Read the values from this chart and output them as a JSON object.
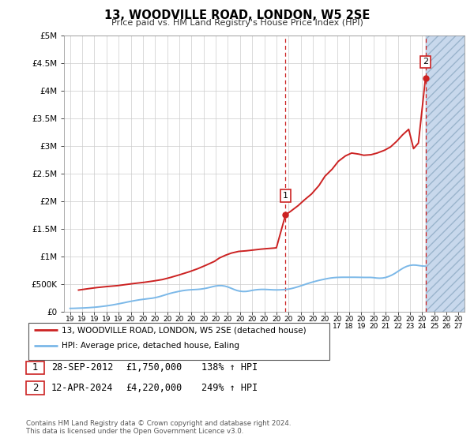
{
  "title": "13, WOODVILLE ROAD, LONDON, W5 2SE",
  "subtitle": "Price paid vs. HM Land Registry's House Price Index (HPI)",
  "ylim": [
    0,
    5000000
  ],
  "yticks": [
    0,
    500000,
    1000000,
    1500000,
    2000000,
    2500000,
    3000000,
    3500000,
    4000000,
    4500000,
    5000000
  ],
  "ytick_labels": [
    "£0",
    "£500K",
    "£1M",
    "£1.5M",
    "£2M",
    "£2.5M",
    "£3M",
    "£3.5M",
    "£4M",
    "£4.5M",
    "£5M"
  ],
  "xlim_start": 1994.5,
  "xlim_end": 2027.5,
  "xtick_years": [
    1995,
    1996,
    1997,
    1998,
    1999,
    2000,
    2001,
    2002,
    2003,
    2004,
    2005,
    2006,
    2007,
    2008,
    2009,
    2010,
    2011,
    2012,
    2013,
    2014,
    2015,
    2016,
    2017,
    2018,
    2019,
    2020,
    2021,
    2022,
    2023,
    2024,
    2025,
    2026,
    2027
  ],
  "hpi_line_color": "#7bb8e8",
  "price_line_color": "#cc2222",
  "dashed_line_color": "#cc2222",
  "hpi_data_x": [
    1995.0,
    1995.25,
    1995.5,
    1995.75,
    1996.0,
    1996.25,
    1996.5,
    1996.75,
    1997.0,
    1997.25,
    1997.5,
    1997.75,
    1998.0,
    1998.25,
    1998.5,
    1998.75,
    1999.0,
    1999.25,
    1999.5,
    1999.75,
    2000.0,
    2000.25,
    2000.5,
    2000.75,
    2001.0,
    2001.25,
    2001.5,
    2001.75,
    2002.0,
    2002.25,
    2002.5,
    2002.75,
    2003.0,
    2003.25,
    2003.5,
    2003.75,
    2004.0,
    2004.25,
    2004.5,
    2004.75,
    2005.0,
    2005.25,
    2005.5,
    2005.75,
    2006.0,
    2006.25,
    2006.5,
    2006.75,
    2007.0,
    2007.25,
    2007.5,
    2007.75,
    2008.0,
    2008.25,
    2008.5,
    2008.75,
    2009.0,
    2009.25,
    2009.5,
    2009.75,
    2010.0,
    2010.25,
    2010.5,
    2010.75,
    2011.0,
    2011.25,
    2011.5,
    2011.75,
    2012.0,
    2012.25,
    2012.5,
    2012.75,
    2013.0,
    2013.25,
    2013.5,
    2013.75,
    2014.0,
    2014.25,
    2014.5,
    2014.75,
    2015.0,
    2015.25,
    2015.5,
    2015.75,
    2016.0,
    2016.25,
    2016.5,
    2016.75,
    2017.0,
    2017.25,
    2017.5,
    2017.75,
    2018.0,
    2018.25,
    2018.5,
    2018.75,
    2019.0,
    2019.25,
    2019.5,
    2019.75,
    2020.0,
    2020.25,
    2020.5,
    2020.75,
    2021.0,
    2021.25,
    2021.5,
    2021.75,
    2022.0,
    2022.25,
    2022.5,
    2022.75,
    2023.0,
    2023.25,
    2023.5,
    2023.75,
    2024.0,
    2024.25
  ],
  "hpi_data_y": [
    58000,
    59000,
    61000,
    63000,
    65000,
    68000,
    71000,
    75000,
    79000,
    84000,
    90000,
    97000,
    104000,
    112000,
    121000,
    131000,
    141000,
    152000,
    163000,
    175000,
    186000,
    196000,
    206000,
    215000,
    222000,
    229000,
    236000,
    242000,
    252000,
    265000,
    280000,
    297000,
    314000,
    330000,
    344000,
    356000,
    368000,
    378000,
    386000,
    392000,
    396000,
    399000,
    402000,
    407000,
    415000,
    425000,
    438000,
    452000,
    464000,
    470000,
    470000,
    462000,
    446000,
    425000,
    402000,
    382000,
    370000,
    364000,
    365000,
    373000,
    384000,
    393000,
    399000,
    402000,
    402000,
    400000,
    397000,
    394000,
    393000,
    394000,
    396000,
    400000,
    407000,
    418000,
    432000,
    448000,
    466000,
    484000,
    503000,
    520000,
    536000,
    551000,
    565000,
    577000,
    589000,
    600000,
    609000,
    615000,
    619000,
    621000,
    622000,
    622000,
    622000,
    622000,
    622000,
    621000,
    620000,
    619000,
    619000,
    619000,
    615000,
    608000,
    605000,
    608000,
    618000,
    636000,
    660000,
    690000,
    726000,
    762000,
    795000,
    820000,
    836000,
    843000,
    841000,
    833000,
    826000,
    823000
  ],
  "price_data_x": [
    1995.7,
    1996.5,
    1997.2,
    1998.1,
    1998.9,
    1999.6,
    2000.3,
    2001.1,
    2001.9,
    2002.6,
    2003.3,
    2004.0,
    2004.8,
    2005.5,
    2006.2,
    2006.9,
    2007.3,
    2007.8,
    2008.3,
    2008.9,
    2009.5,
    2010.1,
    2010.7,
    2011.2,
    2011.8,
    2012.0,
    2012.75,
    2013.2,
    2013.8,
    2014.3,
    2014.9,
    2015.5,
    2016.0,
    2016.6,
    2017.1,
    2017.7,
    2018.2,
    2018.8,
    2019.2,
    2019.8,
    2020.3,
    2020.9,
    2021.4,
    2021.9,
    2022.4,
    2022.9,
    2023.3,
    2023.7,
    2024.28
  ],
  "price_data_y": [
    390000,
    415000,
    435000,
    455000,
    470000,
    490000,
    510000,
    530000,
    555000,
    580000,
    620000,
    665000,
    720000,
    775000,
    840000,
    910000,
    970000,
    1020000,
    1060000,
    1090000,
    1100000,
    1115000,
    1130000,
    1140000,
    1150000,
    1155000,
    1750000,
    1820000,
    1920000,
    2020000,
    2130000,
    2280000,
    2450000,
    2580000,
    2720000,
    2820000,
    2870000,
    2850000,
    2830000,
    2840000,
    2870000,
    2920000,
    2980000,
    3080000,
    3200000,
    3300000,
    2950000,
    3050000,
    4220000
  ],
  "sale1_x": 2012.75,
  "sale1_y": 1750000,
  "sale1_label": "1",
  "sale2_x": 2024.28,
  "sale2_y": 4220000,
  "sale2_label": "2",
  "legend_entries": [
    {
      "label": "13, WOODVILLE ROAD, LONDON, W5 2SE (detached house)",
      "color": "#cc2222"
    },
    {
      "label": "HPI: Average price, detached house, Ealing",
      "color": "#7bb8e8"
    }
  ],
  "table_rows": [
    {
      "num": "1",
      "date": "28-SEP-2012",
      "price": "£1,750,000",
      "hpi": "138% ↑ HPI"
    },
    {
      "num": "2",
      "date": "12-APR-2024",
      "price": "£4,220,000",
      "hpi": "249% ↑ HPI"
    }
  ],
  "footnote": "Contains HM Land Registry data © Crown copyright and database right 2024.\nThis data is licensed under the Open Government Licence v3.0.",
  "bg_color": "#dce9f5",
  "plot_bg_color": "#ffffff",
  "hatched_area_color": "#c8d8ec"
}
